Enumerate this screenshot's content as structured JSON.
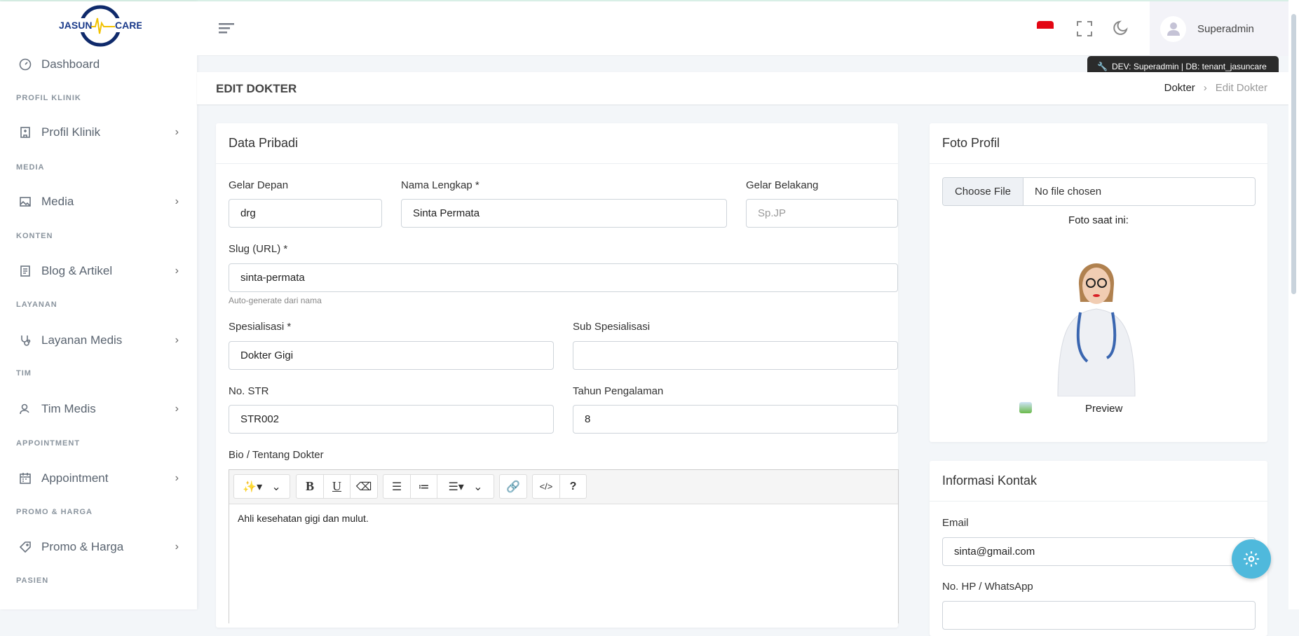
{
  "brand": {
    "logo_text_left": "JASUN",
    "logo_text_right": "CARE"
  },
  "sidebar": {
    "items": [
      {
        "type": "item",
        "label": "Dashboard",
        "icon": "dashboard-icon"
      },
      {
        "type": "section",
        "label": "PROFIL KLINIK"
      },
      {
        "type": "item",
        "label": "Profil Klinik",
        "icon": "building-icon",
        "chevron": true
      },
      {
        "type": "section",
        "label": "MEDIA"
      },
      {
        "type": "item",
        "label": "Media",
        "icon": "image-icon",
        "chevron": true
      },
      {
        "type": "section",
        "label": "KONTEN"
      },
      {
        "type": "item",
        "label": "Blog & Artikel",
        "icon": "document-icon",
        "chevron": true
      },
      {
        "type": "section",
        "label": "LAYANAN"
      },
      {
        "type": "item",
        "label": "Layanan Medis",
        "icon": "stethoscope-icon",
        "chevron": true
      },
      {
        "type": "section",
        "label": "TIM"
      },
      {
        "type": "item",
        "label": "Tim Medis",
        "icon": "user-icon",
        "chevron": true
      },
      {
        "type": "section",
        "label": "APPOINTMENT"
      },
      {
        "type": "item",
        "label": "Appointment",
        "icon": "calendar-icon",
        "chevron": true
      },
      {
        "type": "section",
        "label": "PROMO & HARGA"
      },
      {
        "type": "item",
        "label": "Promo & Harga",
        "icon": "tag-icon",
        "chevron": true
      },
      {
        "type": "section",
        "label": "PASIEN"
      }
    ]
  },
  "header": {
    "user_name": "Superadmin",
    "dev_tooltip": "DEV: Superadmin | DB: tenant_jasuncare",
    "flag_color": "#e30613"
  },
  "page": {
    "title": "EDIT DOKTER",
    "breadcrumb": [
      "Dokter",
      "Edit Dokter"
    ]
  },
  "data_pribadi": {
    "title": "Data Pribadi",
    "gelar_depan": {
      "label": "Gelar Depan",
      "value": "drg"
    },
    "nama": {
      "label": "Nama Lengkap *",
      "value": "Sinta Permata"
    },
    "gelar_belakang": {
      "label": "Gelar Belakang",
      "placeholder": "Sp.JP"
    },
    "slug": {
      "label": "Slug (URL) *",
      "value": "sinta-permata",
      "help": "Auto-generate dari nama"
    },
    "spesialisasi": {
      "label": "Spesialisasi *",
      "value": "Dokter Gigi"
    },
    "sub_spesialisasi": {
      "label": "Sub Spesialisasi",
      "value": ""
    },
    "str": {
      "label": "No. STR",
      "value": "STR002"
    },
    "pengalaman": {
      "label": "Tahun Pengalaman",
      "value": "8"
    },
    "bio": {
      "label": "Bio / Tentang Dokter",
      "value": "Ahli kesehatan gigi dan mulut."
    }
  },
  "foto": {
    "title": "Foto Profil",
    "choose_label": "Choose File",
    "no_file": "No file chosen",
    "current_label": "Foto saat ini:",
    "preview_alt": "Preview"
  },
  "kontak": {
    "title": "Informasi Kontak",
    "email": {
      "label": "Email",
      "value": "sinta@gmail.com"
    },
    "hp": {
      "label": "No. HP / WhatsApp",
      "value": ""
    }
  },
  "accent_color": "#4fb9dc"
}
